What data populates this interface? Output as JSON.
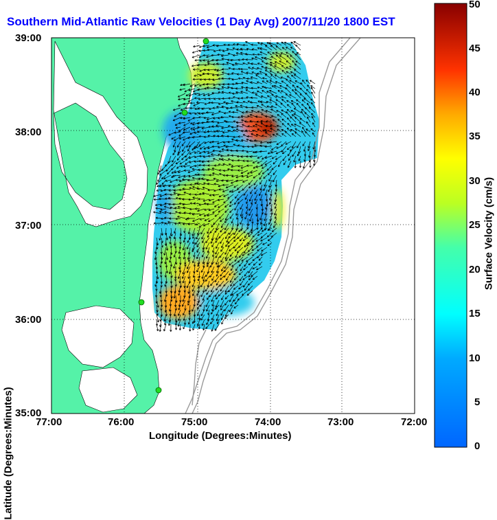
{
  "title": "Southern Mid-Atlantic Raw Velocities (1 Day Avg) 2007/11/20 1800 EST",
  "axes": {
    "xlabel": "Longitude (Degrees:Minutes)",
    "ylabel": "Latitude (Degrees:Minutes)",
    "x_ticks": [
      "77:00",
      "76:00",
      "75:00",
      "74:00",
      "73:00",
      "72:00"
    ],
    "y_ticks": [
      "39:00",
      "38:00",
      "37:00",
      "36:00",
      "35:00"
    ]
  },
  "colorbar": {
    "label": "Surface Velocity (cm/s)",
    "ticks": [
      "50",
      "45",
      "40",
      "35",
      "30",
      "25",
      "20",
      "15",
      "10",
      "5",
      "0"
    ],
    "range": [
      0,
      50
    ]
  },
  "colors": {
    "land": "#55f2a8",
    "water": "#ffffff",
    "title": "#0000ff",
    "site_marker": "#22dd22"
  },
  "map_extent": {
    "lon": [
      -77,
      -72
    ],
    "lat": [
      35,
      39
    ]
  },
  "site_markers": [
    "site-1",
    "site-2",
    "site-3",
    "site-4"
  ]
}
